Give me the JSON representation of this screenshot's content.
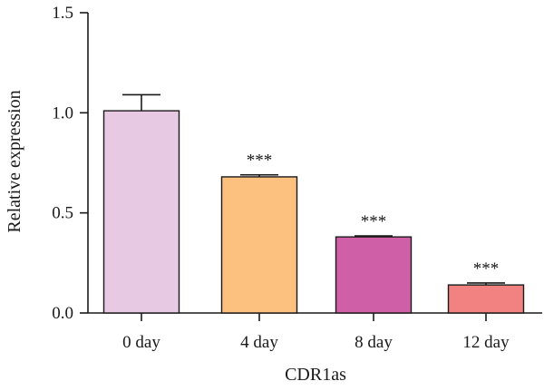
{
  "chart_data": {
    "type": "bar",
    "title": "",
    "xlabel": "CDR1as",
    "ylabel": "Relative expression",
    "ylim": [
      0,
      1.5
    ],
    "yticks": [
      0.0,
      0.5,
      1.0,
      1.5
    ],
    "ytick_labels": [
      "0.0",
      "0.5",
      "1.0",
      "1.5"
    ],
    "categories": [
      "0 day",
      "4 day",
      "8 day",
      "12 day"
    ],
    "values": [
      1.01,
      0.68,
      0.38,
      0.14
    ],
    "errors": [
      0.08,
      0.01,
      0.005,
      0.01
    ],
    "significance": [
      "",
      "***",
      "***",
      "***"
    ],
    "colors": [
      "#e7c9e3",
      "#fcc17f",
      "#cf5fa6",
      "#f18281"
    ],
    "grid": false,
    "legend": "none"
  }
}
